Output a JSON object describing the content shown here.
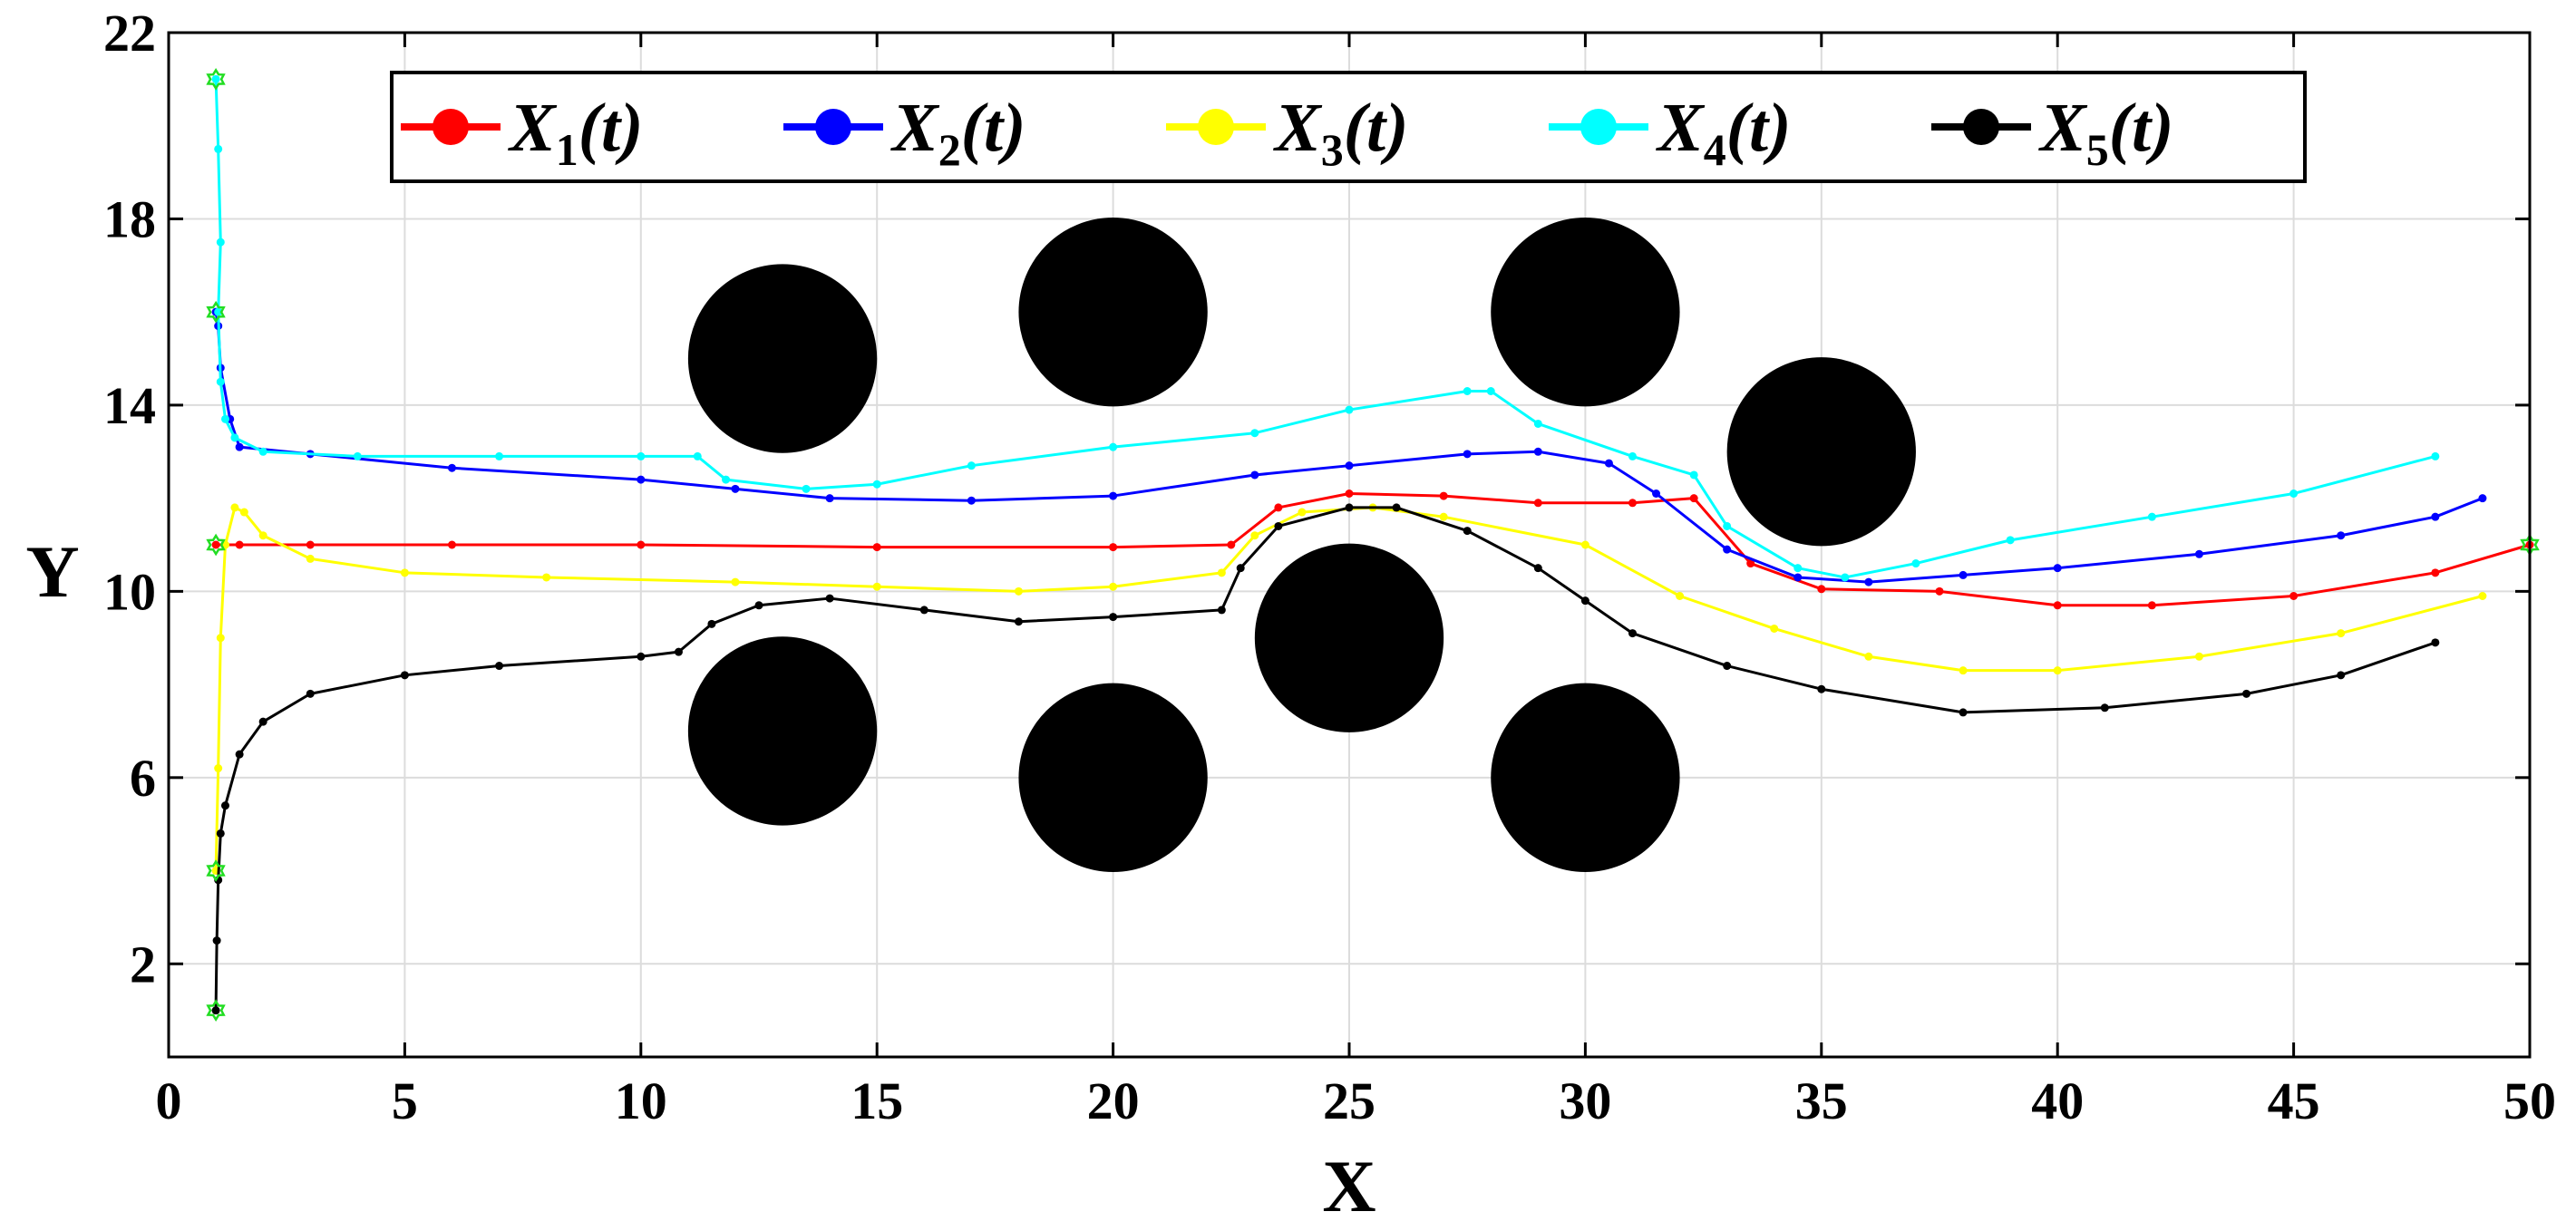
{
  "chart_data": {
    "type": "line",
    "xlabel": "X",
    "ylabel": "Y",
    "xlim": [
      0,
      50
    ],
    "ylim": [
      0,
      22
    ],
    "xticks": [
      0,
      5,
      10,
      15,
      20,
      25,
      30,
      35,
      40,
      45,
      50
    ],
    "yticks": [
      2,
      6,
      10,
      14,
      18,
      22
    ],
    "grid": true,
    "legend_placement": "top-center",
    "obstacles": [
      {
        "x": 13,
        "y": 15,
        "r": 2
      },
      {
        "x": 20,
        "y": 16,
        "r": 2
      },
      {
        "x": 30,
        "y": 16,
        "r": 2
      },
      {
        "x": 35,
        "y": 13,
        "r": 2
      },
      {
        "x": 25,
        "y": 9,
        "r": 2
      },
      {
        "x": 13,
        "y": 7,
        "r": 2
      },
      {
        "x": 20,
        "y": 6,
        "r": 2
      },
      {
        "x": 30,
        "y": 6,
        "r": 2
      }
    ],
    "markers": [
      {
        "x": 1,
        "y": 21
      },
      {
        "x": 1,
        "y": 16
      },
      {
        "x": 1,
        "y": 11
      },
      {
        "x": 1,
        "y": 4
      },
      {
        "x": 1,
        "y": 1
      },
      {
        "x": 50,
        "y": 11
      }
    ],
    "series": [
      {
        "name": "X",
        "subscript": "1",
        "suffix": "(t)",
        "color": "#ff0000",
        "x": [
          1,
          1.5,
          3,
          6,
          10,
          15,
          20,
          22.5,
          23.5,
          25,
          27,
          29,
          31,
          32.3,
          33.5,
          35,
          37.5,
          40,
          42,
          45,
          48,
          50
        ],
        "y": [
          11,
          11,
          11,
          11,
          11,
          10.95,
          10.95,
          11,
          11.8,
          12.1,
          12.05,
          11.9,
          11.9,
          12,
          10.6,
          10.05,
          10,
          9.7,
          9.7,
          9.9,
          10.4,
          11
        ]
      },
      {
        "name": "X",
        "subscript": "2",
        "suffix": "(t)",
        "color": "#0000ff",
        "x": [
          1,
          1.05,
          1.1,
          1.3,
          1.5,
          3,
          6,
          10,
          12,
          14,
          17,
          20,
          23,
          25,
          27.5,
          29,
          30.5,
          31.5,
          33,
          34.5,
          36,
          38,
          40,
          43,
          46,
          48,
          49
        ],
        "y": [
          16,
          15.7,
          14.8,
          13.7,
          13.1,
          12.95,
          12.65,
          12.4,
          12.2,
          12,
          11.95,
          12.05,
          12.5,
          12.7,
          12.95,
          13,
          12.75,
          12.1,
          10.9,
          10.3,
          10.2,
          10.35,
          10.5,
          10.8,
          11.2,
          11.6,
          12
        ]
      },
      {
        "name": "X",
        "subscript": "3",
        "suffix": "(t)",
        "color": "#ffff00",
        "x": [
          1,
          1.05,
          1.1,
          1.2,
          1.4,
          1.6,
          2,
          3,
          5,
          8,
          12,
          15,
          18,
          20,
          22.3,
          23,
          24,
          25.5,
          27,
          30,
          32,
          34,
          36,
          38,
          40,
          43,
          46,
          49
        ],
        "y": [
          4,
          6.2,
          9,
          11,
          11.8,
          11.7,
          11.2,
          10.7,
          10.4,
          10.3,
          10.2,
          10.1,
          10,
          10.1,
          10.4,
          11.2,
          11.7,
          11.8,
          11.6,
          11,
          9.9,
          9.2,
          8.6,
          8.3,
          8.3,
          8.6,
          9.1,
          9.9
        ]
      },
      {
        "name": "X",
        "subscript": "4",
        "suffix": "(t)",
        "color": "#00ffff",
        "x": [
          1,
          1.05,
          1.1,
          1.05,
          1.1,
          1.2,
          1.4,
          2,
          4,
          7,
          10,
          11.2,
          11.8,
          13.5,
          15,
          17,
          20,
          23,
          25,
          27.5,
          28,
          29,
          31,
          32.3,
          33,
          34.5,
          35.5,
          37,
          39,
          42,
          45,
          48
        ],
        "y": [
          21,
          19.5,
          17.5,
          16,
          14.5,
          13.7,
          13.3,
          13,
          12.9,
          12.9,
          12.9,
          12.9,
          12.4,
          12.2,
          12.3,
          12.7,
          13.1,
          13.4,
          13.9,
          14.3,
          14.3,
          13.6,
          12.9,
          12.5,
          11.4,
          10.5,
          10.3,
          10.6,
          11.1,
          11.6,
          12.1,
          12.9
        ]
      },
      {
        "name": "X",
        "subscript": "5",
        "suffix": "(t)",
        "color": "#000000",
        "x": [
          1,
          1.02,
          1.05,
          1.1,
          1.2,
          1.5,
          2,
          3,
          5,
          7,
          10,
          10.8,
          11.5,
          12.5,
          14,
          16,
          18,
          20,
          22.3,
          22.7,
          23.5,
          25,
          26,
          27.5,
          29,
          30,
          31,
          33,
          35,
          38,
          41,
          44,
          46,
          48
        ],
        "y": [
          1,
          2.5,
          3.8,
          4.8,
          5.4,
          6.5,
          7.2,
          7.8,
          8.2,
          8.4,
          8.6,
          8.7,
          9.3,
          9.7,
          9.85,
          9.6,
          9.35,
          9.45,
          9.6,
          10.5,
          11.4,
          11.8,
          11.8,
          11.3,
          10.5,
          9.8,
          9.1,
          8.4,
          7.9,
          7.4,
          7.5,
          7.8,
          8.2,
          8.9
        ]
      }
    ]
  }
}
